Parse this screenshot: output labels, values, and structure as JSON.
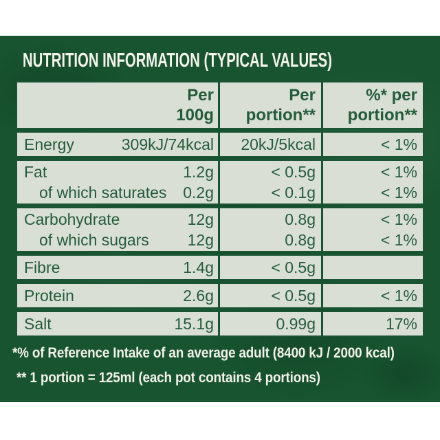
{
  "title": "NUTRITION INFORMATION (TYPICAL VALUES)",
  "table": {
    "headers": {
      "col1": {
        "line1": "Per",
        "line2": "100g"
      },
      "col2": {
        "line1": "Per",
        "line2": "portion**"
      },
      "col3": {
        "line1": "%* per",
        "line2": "portion**"
      }
    },
    "sections": [
      {
        "rows": [
          {
            "label": "Energy",
            "indent": false,
            "per100g": "309kJ/74kcal",
            "per_portion": "20kJ/5kcal",
            "percent_per_portion": "< 1%"
          }
        ]
      },
      {
        "rows": [
          {
            "label": "Fat",
            "indent": false,
            "per100g": "1.2g",
            "per_portion": "< 0.5g",
            "percent_per_portion": "< 1%"
          },
          {
            "label": "of which saturates",
            "indent": true,
            "per100g": "0.2g",
            "per_portion": "< 0.1g",
            "percent_per_portion": "< 1%"
          }
        ]
      },
      {
        "rows": [
          {
            "label": "Carbohydrate",
            "indent": false,
            "per100g": "12g",
            "per_portion": "0.8g",
            "percent_per_portion": "< 1%"
          },
          {
            "label": "of which sugars",
            "indent": true,
            "per100g": "12g",
            "per_portion": "0.8g",
            "percent_per_portion": "< 1%"
          }
        ]
      },
      {
        "rows": [
          {
            "label": "Fibre",
            "indent": false,
            "per100g": "1.4g",
            "per_portion": "< 0.5g",
            "percent_per_portion": ""
          }
        ]
      },
      {
        "rows": [
          {
            "label": "Protein",
            "indent": false,
            "per100g": "2.6g",
            "per_portion": "< 0.5g",
            "percent_per_portion": "< 1%"
          }
        ]
      },
      {
        "rows": [
          {
            "label": "Salt",
            "indent": false,
            "per100g": "15.1g",
            "per_portion": "0.99g",
            "percent_per_portion": "17%"
          }
        ]
      }
    ]
  },
  "footnotes": {
    "line1": "*% of Reference Intake of an average adult (8400 kJ / 2000 kcal)",
    "line2": "** 1 portion = 125ml (each pot contains 4 portions)"
  },
  "colors": {
    "panel_green": "#17542f",
    "table_background": "#dadfd6",
    "text_green": "#235c3b",
    "border_green": "#1b5434",
    "light_text": "#f4f3ec"
  }
}
